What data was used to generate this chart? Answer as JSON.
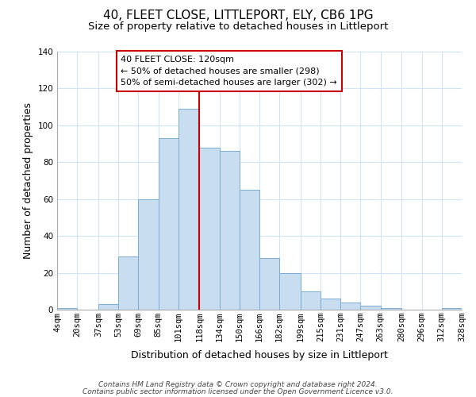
{
  "title": "40, FLEET CLOSE, LITTLEPORT, ELY, CB6 1PG",
  "subtitle": "Size of property relative to detached houses in Littleport",
  "xlabel": "Distribution of detached houses by size in Littleport",
  "ylabel": "Number of detached properties",
  "bar_edges": [
    4,
    20,
    37,
    53,
    69,
    85,
    101,
    118,
    134,
    150,
    166,
    182,
    199,
    215,
    231,
    247,
    263,
    280,
    296,
    312,
    328
  ],
  "bar_heights": [
    1,
    0,
    3,
    29,
    60,
    93,
    109,
    88,
    86,
    65,
    28,
    20,
    10,
    6,
    4,
    2,
    1,
    0,
    0,
    1
  ],
  "bar_color": "#c8ddf0",
  "bar_edge_color": "#7aadd4",
  "vline_x": 118,
  "vline_color": "#cc0000",
  "ylim": [
    0,
    140
  ],
  "tick_labels": [
    "4sqm",
    "20sqm",
    "37sqm",
    "53sqm",
    "69sqm",
    "85sqm",
    "101sqm",
    "118sqm",
    "134sqm",
    "150sqm",
    "166sqm",
    "182sqm",
    "199sqm",
    "215sqm",
    "231sqm",
    "247sqm",
    "263sqm",
    "280sqm",
    "296sqm",
    "312sqm",
    "328sqm"
  ],
  "annotation_title": "40 FLEET CLOSE: 120sqm",
  "annotation_line1": "← 50% of detached houses are smaller (298)",
  "annotation_line2": "50% of semi-detached houses are larger (302) →",
  "annotation_box_color": "#ffffff",
  "annotation_box_edge": "#cc0000",
  "footnote1": "Contains HM Land Registry data © Crown copyright and database right 2024.",
  "footnote2": "Contains public sector information licensed under the Open Government Licence v3.0.",
  "bg_color": "#ffffff",
  "grid_color": "#d0e4f5",
  "title_fontsize": 11,
  "subtitle_fontsize": 9.5,
  "axis_label_fontsize": 9,
  "tick_fontsize": 7.5,
  "annotation_fontsize": 8,
  "footnote_fontsize": 6.5
}
